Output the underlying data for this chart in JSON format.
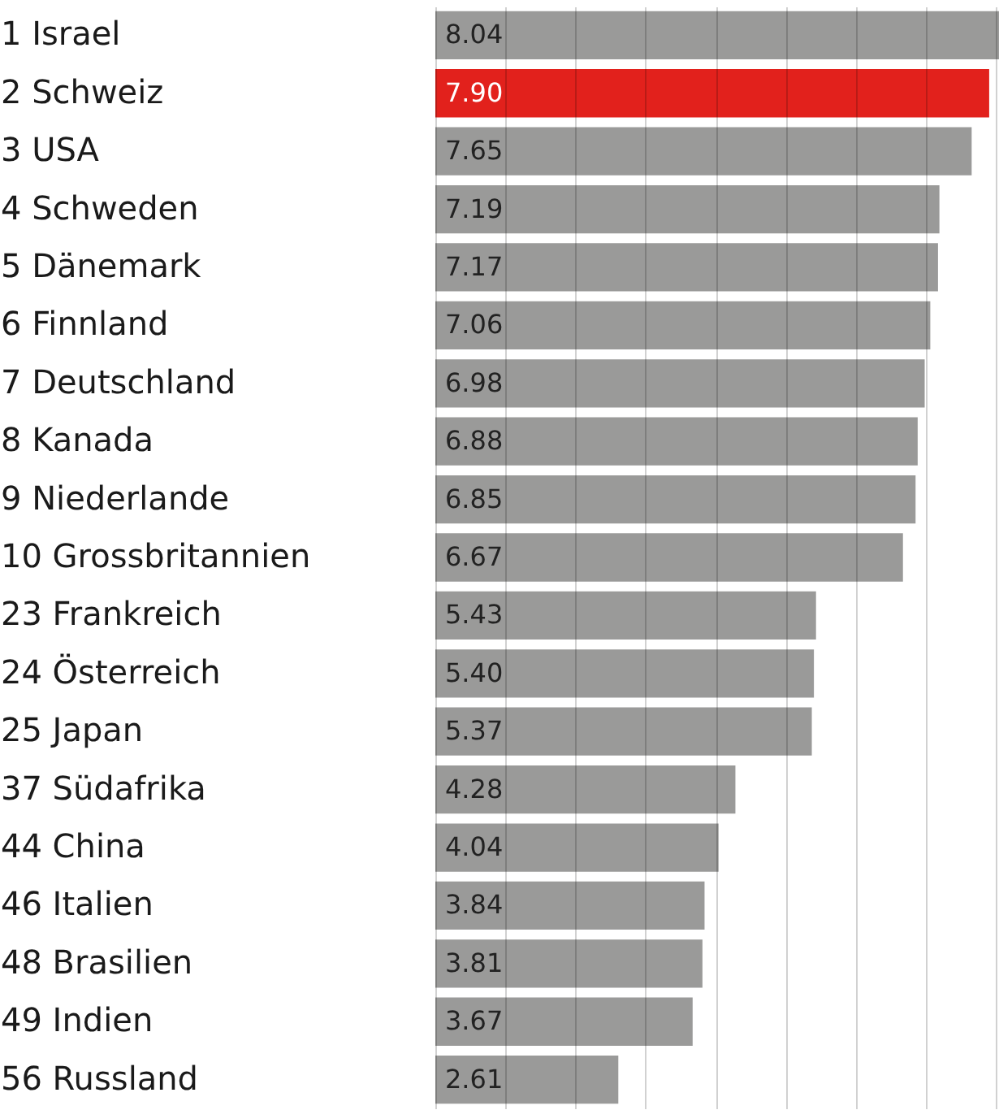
{
  "chart_data": {
    "type": "bar",
    "orientation": "horizontal",
    "categories": [
      "1  Israel",
      "2  Schweiz",
      "3  USA",
      "4  Schweden",
      "5  Dänemark",
      "6  Finnland",
      "7  Deutschland",
      "8  Kanada",
      "9  Niederlande",
      "10  Grossbritannien",
      "23  Frankreich",
      "24  Österreich",
      "25  Japan",
      "37  Südafrika",
      "44  China",
      "46  Italien",
      "48  Brasilien",
      "49  Indien",
      "56  Russland"
    ],
    "values": [
      8.04,
      7.9,
      7.65,
      7.19,
      7.17,
      7.06,
      6.98,
      6.88,
      6.85,
      6.67,
      5.43,
      5.4,
      5.37,
      4.28,
      4.04,
      3.84,
      3.81,
      3.67,
      2.61
    ],
    "value_labels": [
      "8.04",
      "7.90",
      "7.65",
      "7.19",
      "7.17",
      "7.06",
      "6.98",
      "6.88",
      "6.85",
      "6.67",
      "5.43",
      "5.40",
      "5.37",
      "4.28",
      "4.04",
      "3.84",
      "3.81",
      "3.67",
      "2.61"
    ],
    "colors": [
      "#9a9a99",
      "#e2211c",
      "#9a9a99",
      "#9a9a99",
      "#9a9a99",
      "#9a9a99",
      "#9a9a99",
      "#9a9a99",
      "#9a9a99",
      "#9a9a99",
      "#9a9a99",
      "#9a9a99",
      "#9a9a99",
      "#9a9a99",
      "#9a9a99",
      "#9a9a99",
      "#9a9a99",
      "#9a9a99",
      "#9a9a99"
    ],
    "xlim": [
      0,
      8.04
    ],
    "xticks": [
      {
        "value": 0,
        "label": null
      },
      {
        "value": 1,
        "label": null
      },
      {
        "value": 2,
        "label": null
      },
      {
        "value": 3,
        "label": null
      },
      {
        "value": 4,
        "label": null
      },
      {
        "value": 5,
        "label": null
      },
      {
        "value": 6,
        "label": null
      },
      {
        "value": 7,
        "label": null
      },
      {
        "value": 8,
        "label": null
      }
    ],
    "grid": "x",
    "tick_labels": "y"
  }
}
